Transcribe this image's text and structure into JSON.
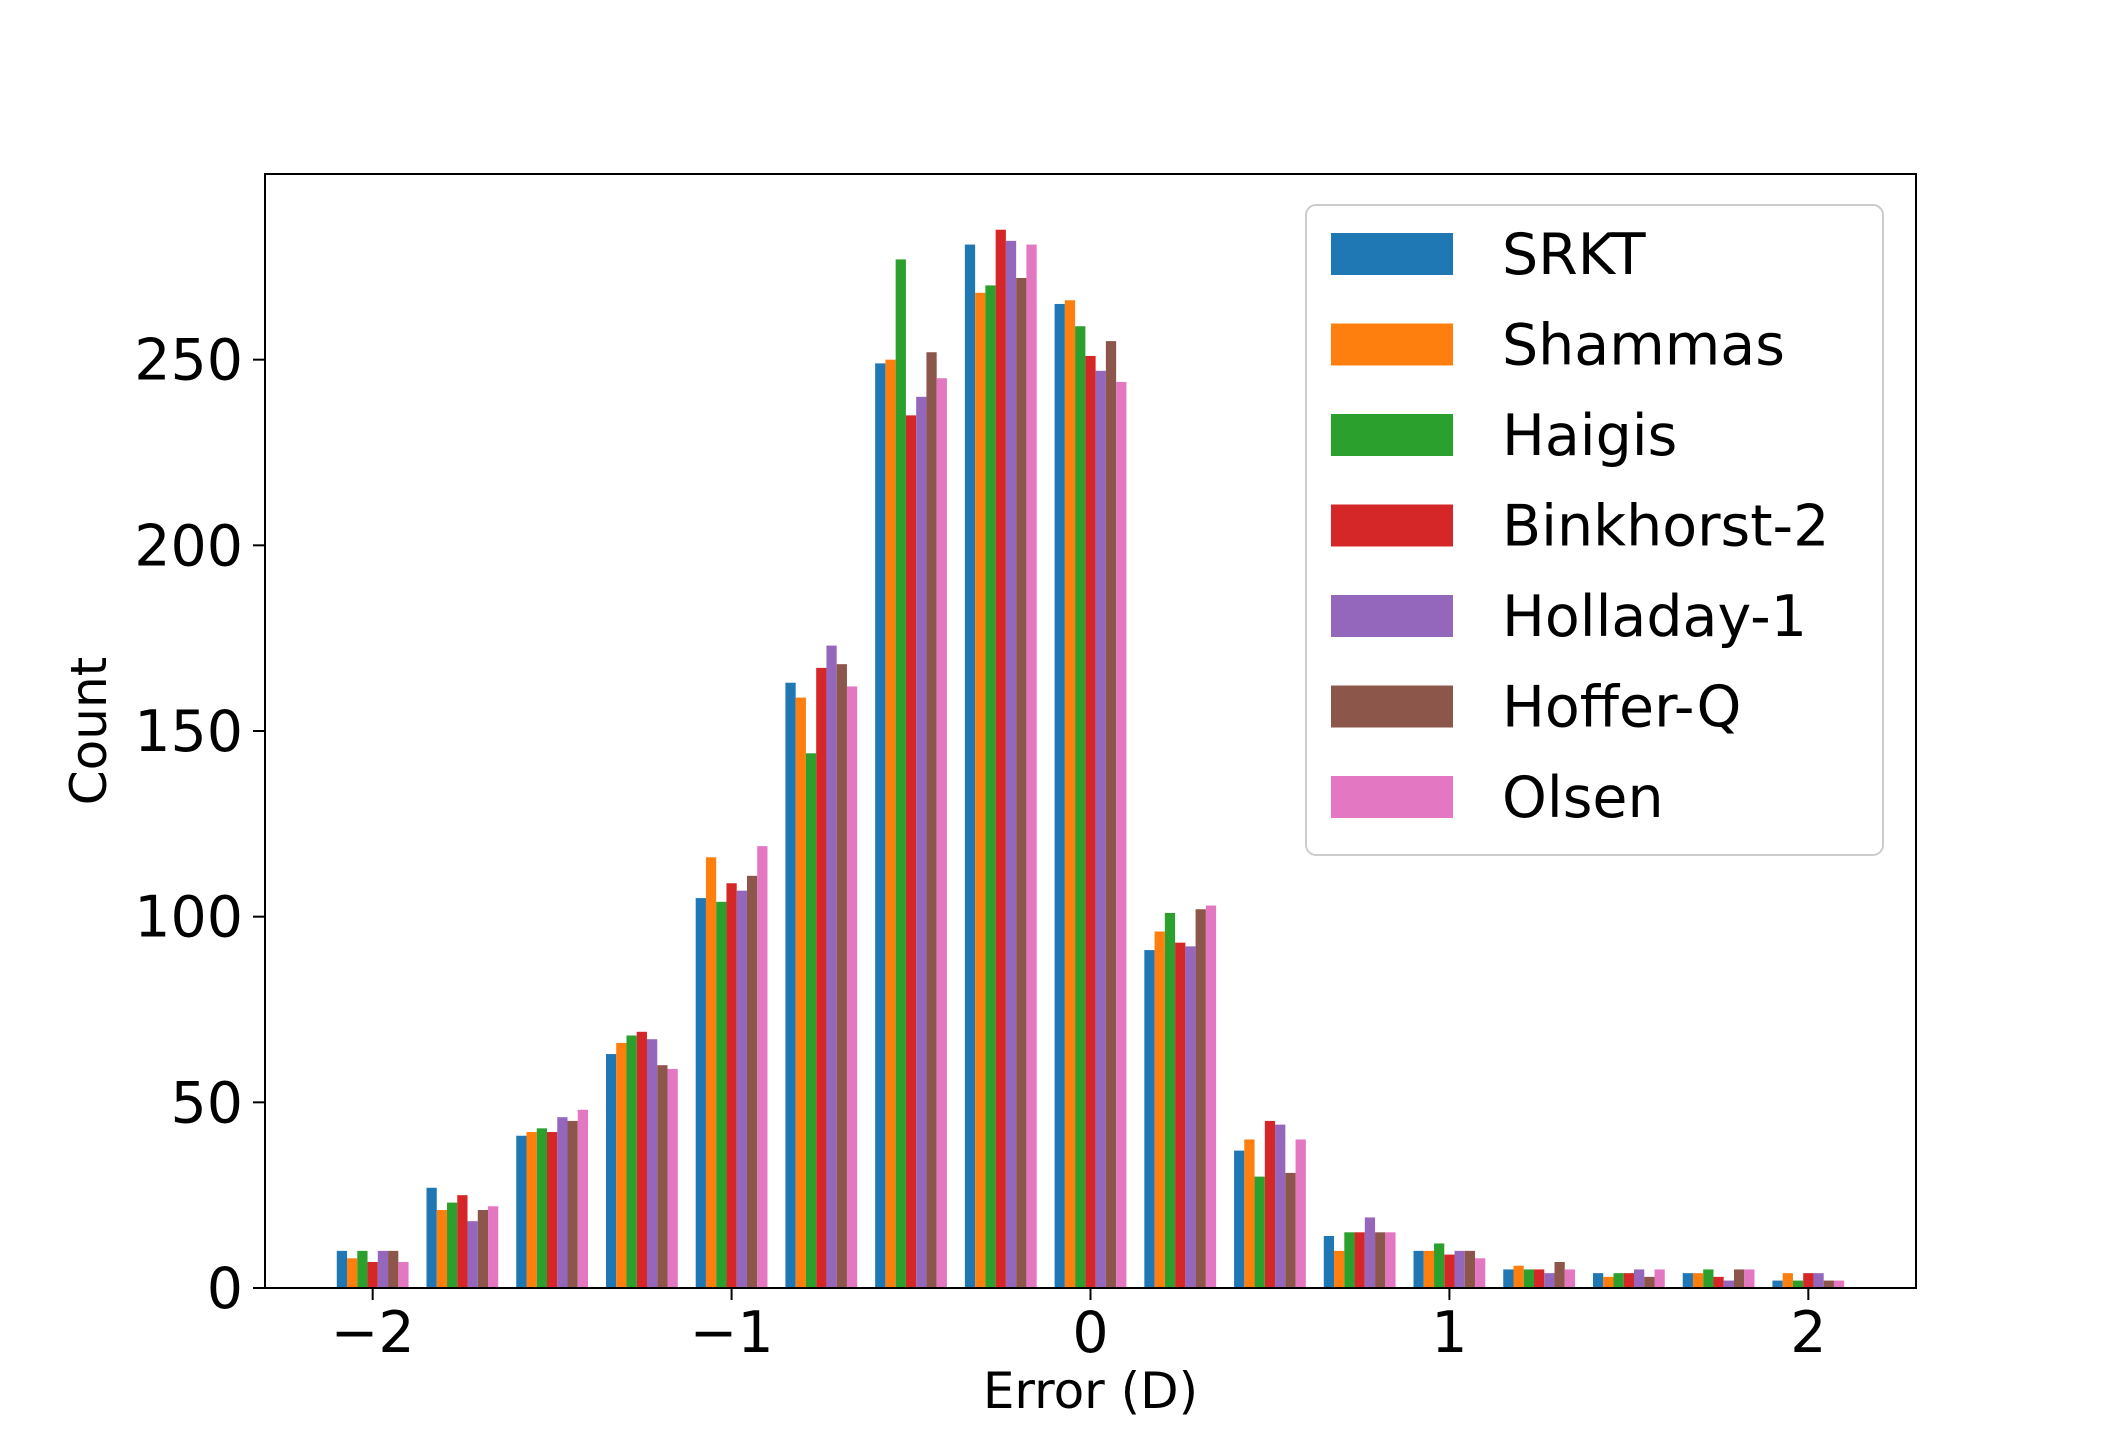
{
  "chart_data": {
    "type": "bar",
    "title": "",
    "xlabel": "Error (D)",
    "ylabel": "Count",
    "xlim": [
      -2.3,
      2.3
    ],
    "ylim": [
      0,
      300
    ],
    "xticks": [
      -2,
      -1,
      0,
      1,
      2
    ],
    "xtick_labels": [
      "−2",
      "−1",
      "0",
      "1",
      "2"
    ],
    "yticks": [
      0,
      50,
      100,
      150,
      200,
      250
    ],
    "ytick_labels": [
      "0",
      "50",
      "100",
      "150",
      "200",
      "250"
    ],
    "grid": false,
    "legend_position": "top-right",
    "bin_edges": [
      -2.125,
      -1.875,
      -1.625,
      -1.375,
      -1.125,
      -0.875,
      -0.625,
      -0.375,
      -0.125,
      0.125,
      0.375,
      0.625,
      0.875,
      1.125,
      1.375,
      1.625,
      1.875,
      2.125
    ],
    "series": [
      {
        "name": "SRKT",
        "color": "#1f77b4",
        "values": [
          10,
          27,
          41,
          63,
          105,
          163,
          249,
          281,
          265,
          91,
          37,
          14,
          10,
          5,
          4,
          4,
          2
        ]
      },
      {
        "name": "Shammas",
        "color": "#ff7f0e",
        "values": [
          8,
          21,
          42,
          66,
          116,
          159,
          250,
          268,
          266,
          96,
          40,
          10,
          10,
          6,
          3,
          4,
          4
        ]
      },
      {
        "name": "Haigis",
        "color": "#2ca02c",
        "values": [
          10,
          23,
          43,
          68,
          104,
          144,
          277,
          270,
          259,
          101,
          30,
          15,
          12,
          5,
          4,
          5,
          2
        ]
      },
      {
        "name": "Binkhorst-2",
        "color": "#d62728",
        "values": [
          7,
          25,
          42,
          69,
          109,
          167,
          235,
          285,
          251,
          93,
          45,
          15,
          9,
          5,
          4,
          3,
          4
        ]
      },
      {
        "name": "Holladay-1",
        "color": "#9467bd",
        "values": [
          10,
          18,
          46,
          67,
          107,
          173,
          240,
          282,
          247,
          92,
          44,
          19,
          10,
          4,
          5,
          2,
          4
        ]
      },
      {
        "name": "Hoffer-Q",
        "color": "#8c564b",
        "values": [
          10,
          21,
          45,
          60,
          111,
          168,
          252,
          272,
          255,
          102,
          31,
          15,
          10,
          7,
          3,
          5,
          2
        ]
      },
      {
        "name": "Olsen",
        "color": "#e377c2",
        "values": [
          7,
          22,
          48,
          59,
          119,
          162,
          245,
          281,
          244,
          103,
          40,
          15,
          8,
          5,
          5,
          5,
          2
        ]
      }
    ]
  }
}
